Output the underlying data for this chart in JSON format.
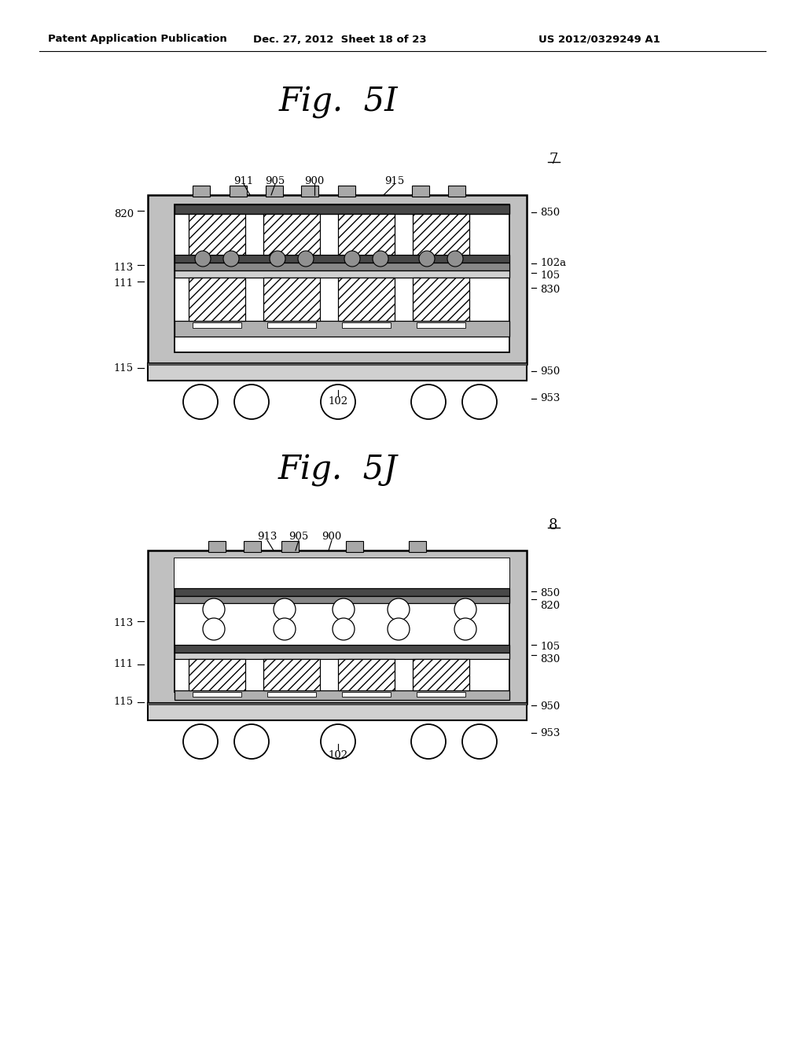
{
  "header_left": "Patent Application Publication",
  "header_mid": "Dec. 27, 2012  Sheet 18 of 23",
  "header_right": "US 2012/0329249 A1",
  "title_5I": "Fig.  5I",
  "title_5J": "Fig.  5J",
  "label_7": "7",
  "label_8": "8",
  "stipple_gray": "#c0c0c0",
  "dark_gray": "#505050",
  "mid_gray": "#888888",
  "light_gray": "#d0d0d0",
  "pcb_dotted": "#b0b0b0",
  "white": "#ffffff",
  "black": "#000000",
  "bump_color": "#909090",
  "pad_color": "#a8a8a8",
  "layer_dark": "#484848",
  "layer_mid": "#808080"
}
